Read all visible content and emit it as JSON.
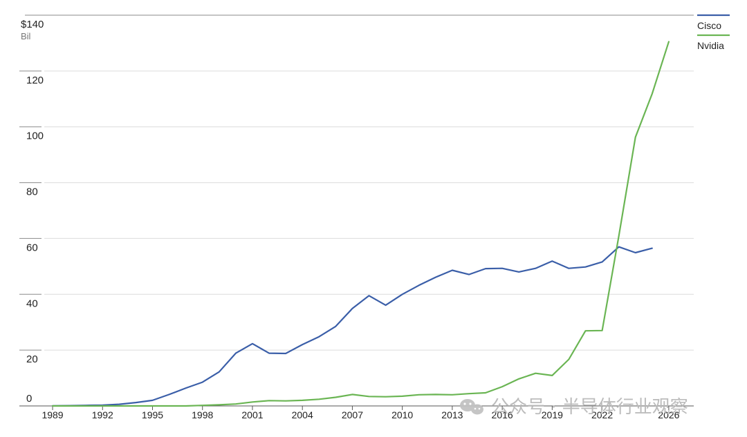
{
  "chart_data": {
    "type": "line",
    "title": "",
    "xlabel": "",
    "ylabel": "",
    "y_unit_top_label": "$140",
    "y_unit_sub_label": "Bil",
    "ylim": [
      0,
      140
    ],
    "xlim": [
      1988.5,
      2027.5
    ],
    "y_ticks": [
      0,
      20,
      40,
      60,
      80,
      100,
      120
    ],
    "y_tick_labels": [
      "0",
      "20",
      "40",
      "60",
      "80",
      "100",
      "120"
    ],
    "x_ticks": [
      1989,
      1992,
      1995,
      1998,
      2001,
      2004,
      2007,
      2010,
      2013,
      2016,
      2019,
      2022,
      2026
    ],
    "x_tick_labels": [
      "1989",
      "1992",
      "1995",
      "1998",
      "2001",
      "2004",
      "2007",
      "2010",
      "2013",
      "2016",
      "2019",
      "2022",
      "2026"
    ],
    "grid": true,
    "legend_position": "top-right",
    "series": [
      {
        "name": "Cisco",
        "color": "#3a5ea8",
        "x": [
          1989,
          1990,
          1991,
          1992,
          1993,
          1994,
          1995,
          1996,
          1997,
          1998,
          1999,
          2000,
          2001,
          2002,
          2003,
          2004,
          2005,
          2006,
          2007,
          2008,
          2009,
          2010,
          2011,
          2012,
          2013,
          2014,
          2015,
          2016,
          2017,
          2018,
          2019,
          2020,
          2021,
          2022,
          2023,
          2024,
          2025
        ],
        "values": [
          0.03,
          0.1,
          0.2,
          0.3,
          0.6,
          1.2,
          2.0,
          4.1,
          6.4,
          8.5,
          12.2,
          18.9,
          22.3,
          18.9,
          18.8,
          22.0,
          24.8,
          28.5,
          34.9,
          39.5,
          36.1,
          40.0,
          43.2,
          46.1,
          48.6,
          47.1,
          49.2,
          49.3,
          48.0,
          49.3,
          51.9,
          49.3,
          49.8,
          51.6,
          57.0,
          54.9,
          56.5
        ]
      },
      {
        "name": "Nvidia",
        "color": "#6ab553",
        "x": [
          1989,
          1990,
          1991,
          1992,
          1993,
          1994,
          1995,
          1996,
          1997,
          1998,
          1999,
          2000,
          2001,
          2002,
          2003,
          2004,
          2005,
          2006,
          2007,
          2008,
          2009,
          2010,
          2011,
          2012,
          2013,
          2014,
          2015,
          2016,
          2017,
          2018,
          2019,
          2020,
          2021,
          2022,
          2023,
          2024,
          2025,
          2026
        ],
        "values": [
          0,
          0,
          0,
          0,
          0,
          0,
          0,
          0,
          0,
          0.2,
          0.4,
          0.7,
          1.4,
          1.9,
          1.8,
          2.0,
          2.4,
          3.1,
          4.1,
          3.4,
          3.3,
          3.5,
          4.0,
          4.1,
          4.0,
          4.4,
          4.7,
          6.9,
          9.7,
          11.7,
          10.9,
          16.7,
          26.9,
          27.0,
          60.9,
          96.3,
          111.8,
          130.5
        ]
      }
    ]
  },
  "watermark": {
    "icon": "wechat-icon",
    "text": "公众号 · 半导体行业观察"
  }
}
